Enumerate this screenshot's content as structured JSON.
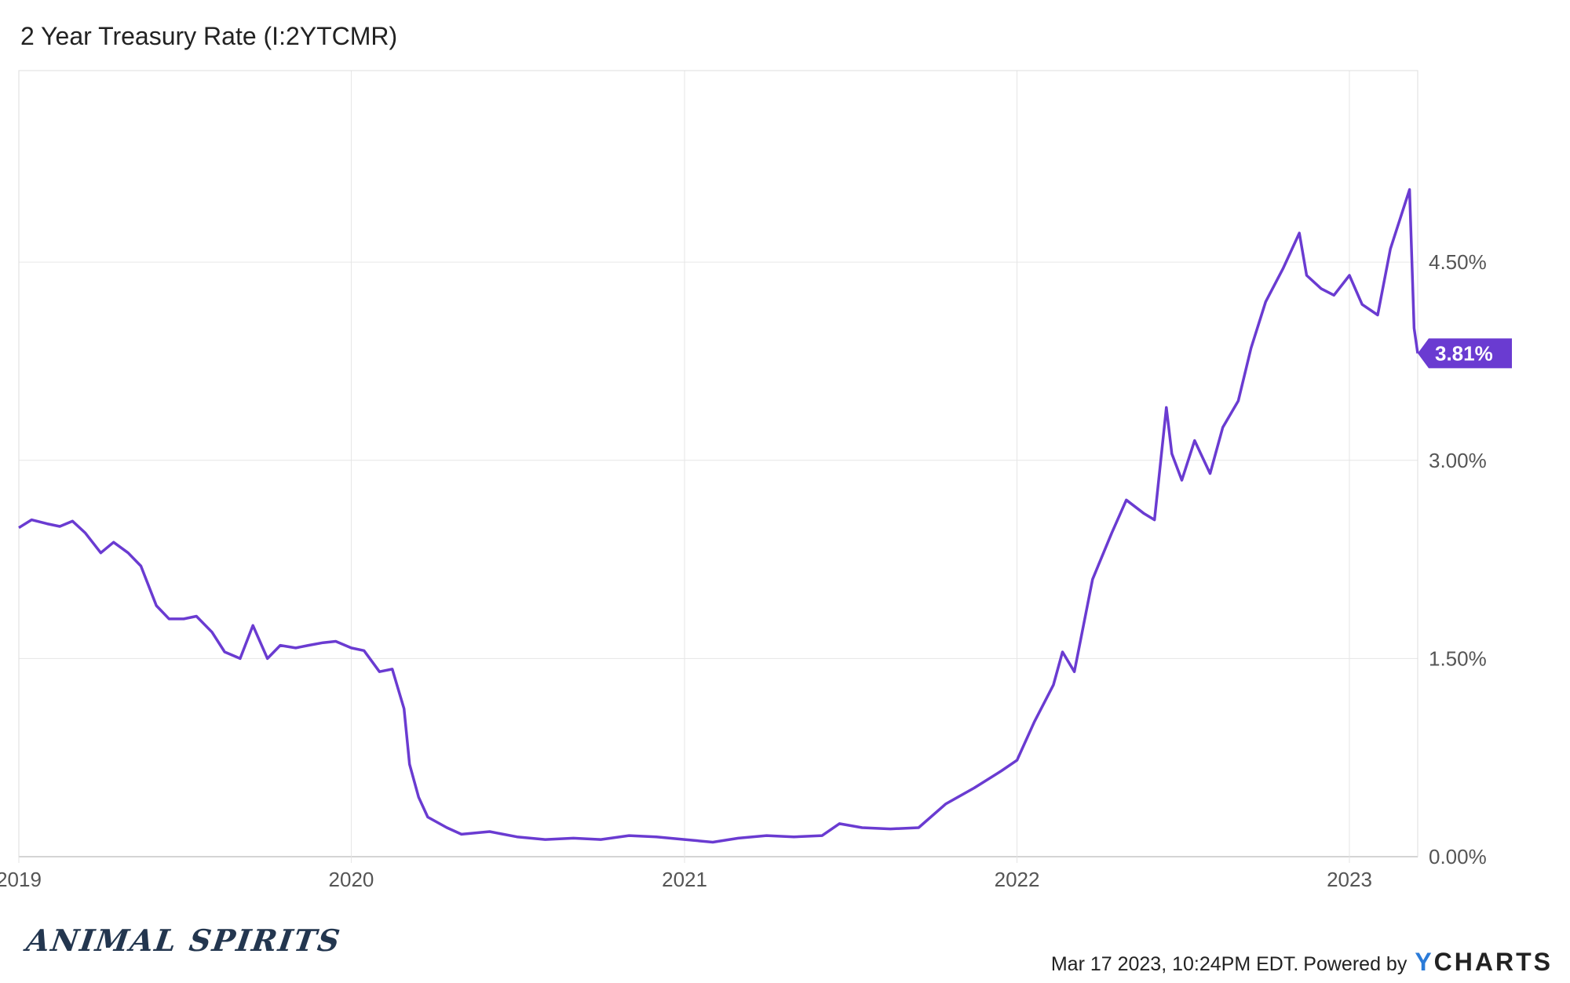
{
  "header": {
    "title": "2 Year Treasury Rate (I:2YTCMR)"
  },
  "footer": {
    "timestamp_text": "Mar 17 2023, 10:24PM EDT.",
    "powered_text": "Powered by",
    "brand_y": "Y",
    "brand_rest": "CHARTS",
    "watermark": "ANIMAL SPIRITS"
  },
  "colors": {
    "line": "#6a3bd1",
    "grid": "#e6e6e6",
    "axis": "#999999",
    "label_bg": "#6a3bd1",
    "label_text": "#ffffff"
  },
  "chart_data": {
    "type": "line",
    "title": "2 Year Treasury Rate (I:2YTCMR)",
    "xlabel": "",
    "ylabel": "",
    "x_tick_labels": [
      "2019",
      "2020",
      "2021",
      "2022",
      "2023"
    ],
    "y_tick_labels": [
      "0.00%",
      "1.50%",
      "3.00%",
      "4.50%"
    ],
    "y_ticks": [
      0,
      1.5,
      3.0,
      4.5
    ],
    "xlim": [
      "2019-01-01",
      "2023-03-17"
    ],
    "ylim": [
      0,
      5.95
    ],
    "grid": true,
    "last_value_label": "3.81%",
    "series": [
      {
        "points": [
          [
            "2019-01-01",
            2.49
          ],
          [
            "2019-01-15",
            2.55
          ],
          [
            "2019-02-01",
            2.52
          ],
          [
            "2019-02-15",
            2.5
          ],
          [
            "2019-03-01",
            2.54
          ],
          [
            "2019-03-15",
            2.45
          ],
          [
            "2019-04-01",
            2.3
          ],
          [
            "2019-04-15",
            2.38
          ],
          [
            "2019-05-01",
            2.3
          ],
          [
            "2019-05-15",
            2.2
          ],
          [
            "2019-06-01",
            1.9
          ],
          [
            "2019-06-15",
            1.8
          ],
          [
            "2019-07-01",
            1.8
          ],
          [
            "2019-07-15",
            1.82
          ],
          [
            "2019-08-01",
            1.7
          ],
          [
            "2019-08-15",
            1.55
          ],
          [
            "2019-09-01",
            1.5
          ],
          [
            "2019-09-15",
            1.75
          ],
          [
            "2019-10-01",
            1.5
          ],
          [
            "2019-10-15",
            1.6
          ],
          [
            "2019-11-01",
            1.58
          ],
          [
            "2019-11-15",
            1.6
          ],
          [
            "2019-12-01",
            1.62
          ],
          [
            "2019-12-15",
            1.63
          ],
          [
            "2020-01-01",
            1.58
          ],
          [
            "2020-01-15",
            1.56
          ],
          [
            "2020-02-01",
            1.4
          ],
          [
            "2020-02-15",
            1.42
          ],
          [
            "2020-02-28",
            1.12
          ],
          [
            "2020-03-05",
            0.7
          ],
          [
            "2020-03-15",
            0.45
          ],
          [
            "2020-03-25",
            0.3
          ],
          [
            "2020-04-15",
            0.22
          ],
          [
            "2020-05-01",
            0.17
          ],
          [
            "2020-06-01",
            0.19
          ],
          [
            "2020-07-01",
            0.15
          ],
          [
            "2020-08-01",
            0.13
          ],
          [
            "2020-09-01",
            0.14
          ],
          [
            "2020-10-01",
            0.13
          ],
          [
            "2020-11-01",
            0.16
          ],
          [
            "2020-12-01",
            0.15
          ],
          [
            "2021-01-01",
            0.13
          ],
          [
            "2021-02-01",
            0.11
          ],
          [
            "2021-03-01",
            0.14
          ],
          [
            "2021-04-01",
            0.16
          ],
          [
            "2021-05-01",
            0.15
          ],
          [
            "2021-06-01",
            0.16
          ],
          [
            "2021-06-20",
            0.25
          ],
          [
            "2021-07-15",
            0.22
          ],
          [
            "2021-08-15",
            0.21
          ],
          [
            "2021-09-15",
            0.22
          ],
          [
            "2021-10-15",
            0.4
          ],
          [
            "2021-11-15",
            0.52
          ],
          [
            "2021-12-15",
            0.65
          ],
          [
            "2022-01-01",
            0.73
          ],
          [
            "2022-01-20",
            1.02
          ],
          [
            "2022-02-10",
            1.3
          ],
          [
            "2022-02-20",
            1.55
          ],
          [
            "2022-03-05",
            1.4
          ],
          [
            "2022-03-25",
            2.1
          ],
          [
            "2022-04-15",
            2.45
          ],
          [
            "2022-05-01",
            2.7
          ],
          [
            "2022-05-20",
            2.6
          ],
          [
            "2022-06-01",
            2.55
          ],
          [
            "2022-06-14",
            3.4
          ],
          [
            "2022-06-20",
            3.05
          ],
          [
            "2022-07-01",
            2.85
          ],
          [
            "2022-07-15",
            3.15
          ],
          [
            "2022-08-01",
            2.9
          ],
          [
            "2022-08-15",
            3.25
          ],
          [
            "2022-09-01",
            3.45
          ],
          [
            "2022-09-15",
            3.85
          ],
          [
            "2022-10-01",
            4.2
          ],
          [
            "2022-10-20",
            4.45
          ],
          [
            "2022-11-07",
            4.72
          ],
          [
            "2022-11-15",
            4.4
          ],
          [
            "2022-12-01",
            4.3
          ],
          [
            "2022-12-15",
            4.25
          ],
          [
            "2023-01-01",
            4.4
          ],
          [
            "2023-01-15",
            4.18
          ],
          [
            "2023-02-01",
            4.1
          ],
          [
            "2023-02-15",
            4.6
          ],
          [
            "2023-03-08",
            5.05
          ],
          [
            "2023-03-13",
            4.0
          ],
          [
            "2023-03-17",
            3.81
          ]
        ]
      }
    ]
  }
}
